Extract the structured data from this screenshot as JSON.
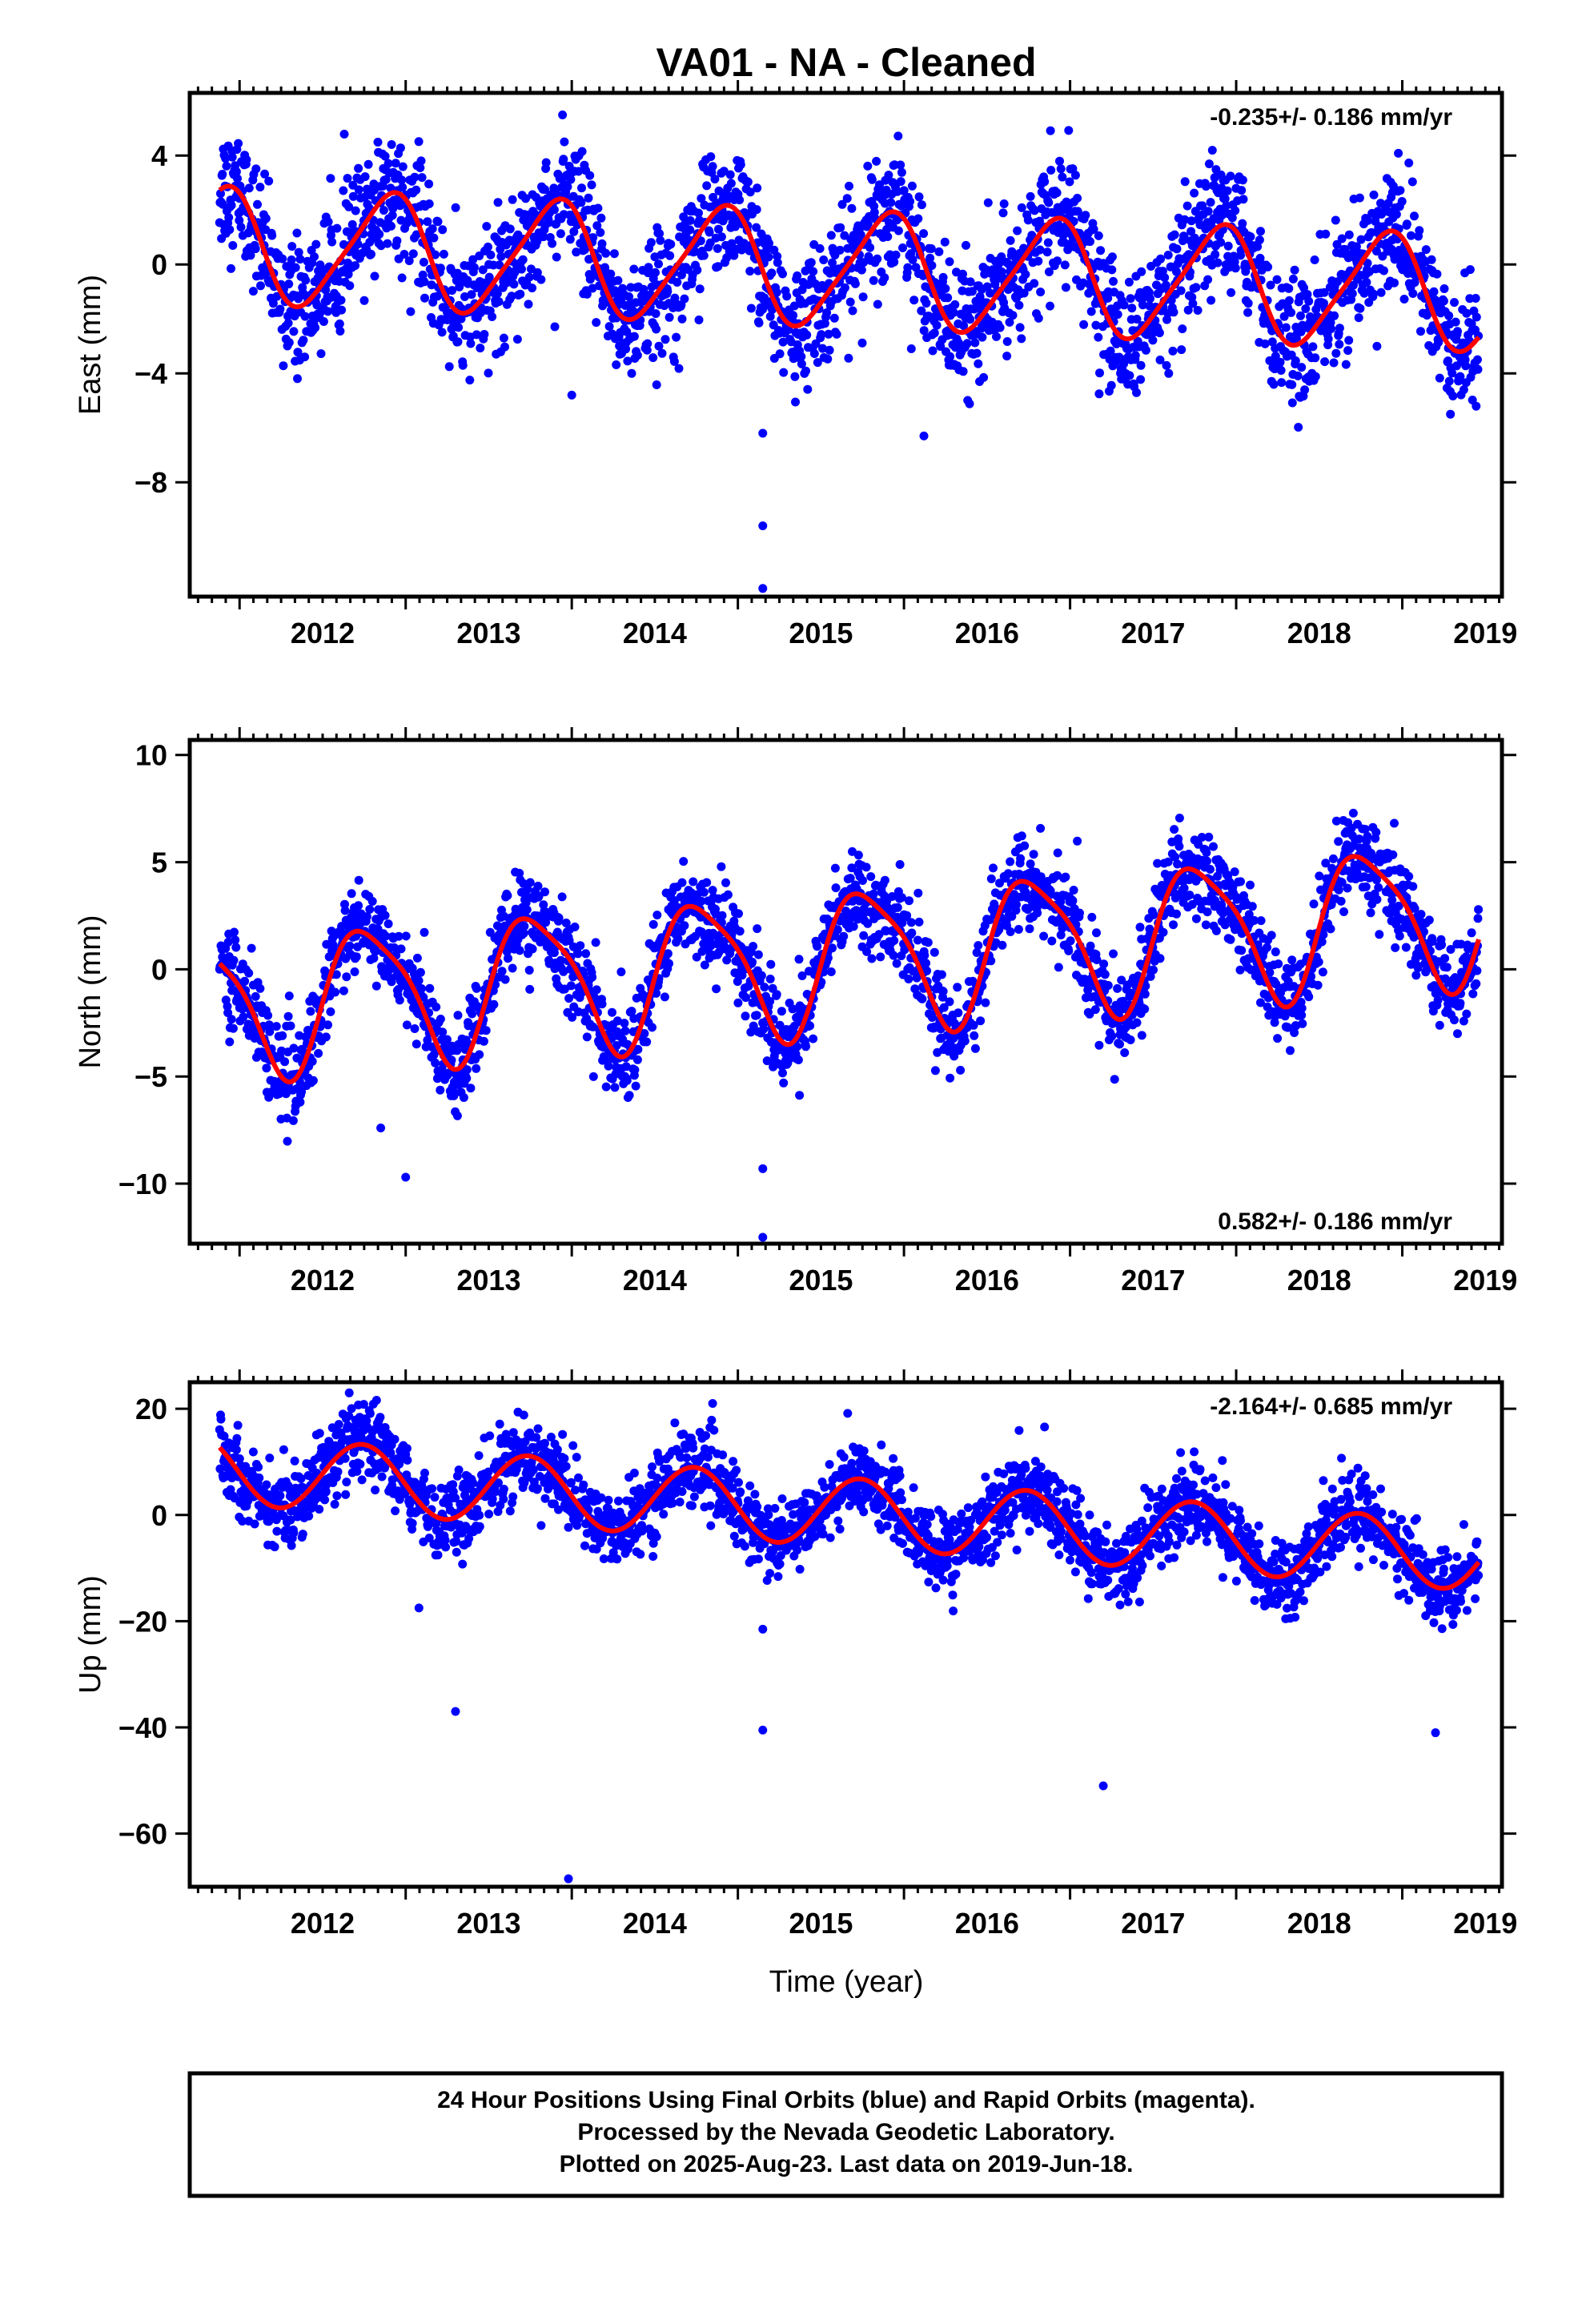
{
  "title": "VA01  - NA - Cleaned",
  "xlabel": "Time (year)",
  "footer": [
    "24 Hour Positions Using Final Orbits (blue) and Rapid Orbits (magenta).",
    "Processed by the Nevada Geodetic Laboratory.",
    "Plotted on 2025-Aug-23. Last data on 2019-Jun-18."
  ],
  "colors": {
    "points": "#0000ff",
    "model": "#ff0000",
    "frame": "#000000"
  },
  "chart_data": [
    {
      "type": "scatter",
      "ylabel": "East (mm)",
      "rate_text": "-0.235+/- 0.186 mm/yr",
      "rate_position": "top-right",
      "xlim": [
        2011.7,
        2019.6
      ],
      "ylim": [
        -12.2,
        6.3
      ],
      "xticks": [
        2012,
        2013,
        2014,
        2015,
        2016,
        2017,
        2018,
        2019
      ],
      "yticks": [
        4,
        0,
        -4,
        -8
      ],
      "ytick_labels": [
        "4",
        "0",
        "−4",
        "−8"
      ],
      "model": {
        "rate_mm_yr": -0.235,
        "t0": 2015.5,
        "offset": -0.15,
        "annual_cos": 1.6,
        "annual_sin": -1.3,
        "semiannual_cos": 0.35,
        "semiannual_sin": 0.05
      },
      "noise_sd": 1.15,
      "outliers": [
        [
          2015.15,
          -6.2
        ],
        [
          2015.15,
          -9.6
        ],
        [
          2015.15,
          -11.9
        ],
        [
          2016.12,
          -6.3
        ],
        [
          2014.0,
          -4.8
        ],
        [
          2019.29,
          -5.5
        ]
      ],
      "series": [
        {
          "name": "Final Orbits",
          "color": "#0000ff"
        },
        {
          "name": "Model",
          "color": "#ff0000"
        }
      ]
    },
    {
      "type": "scatter",
      "ylabel": "North (mm)",
      "rate_text": "0.582+/- 0.186 mm/yr",
      "rate_position": "bottom-right",
      "xlim": [
        2011.7,
        2019.6
      ],
      "ylim": [
        -12.8,
        10.7
      ],
      "xticks": [
        2012,
        2013,
        2014,
        2015,
        2016,
        2017,
        2018,
        2019
      ],
      "yticks": [
        10,
        5,
        0,
        -5,
        -10
      ],
      "ytick_labels": [
        "10",
        "5",
        "0",
        "−5",
        "−10"
      ],
      "model": {
        "rate_mm_yr": 0.582,
        "t0": 2015.5,
        "offset": 0.4,
        "annual_cos": 0.5,
        "annual_sin": -3.2,
        "semiannual_cos": 0.3,
        "semiannual_sin": 0.6
      },
      "noise_sd": 1.05,
      "outliers": [
        [
          2013.0,
          -9.7
        ],
        [
          2015.15,
          -9.3
        ],
        [
          2015.15,
          -12.5
        ],
        [
          2012.85,
          -7.4
        ]
      ],
      "series": [
        {
          "name": "Final Orbits",
          "color": "#0000ff"
        },
        {
          "name": "Model",
          "color": "#ff0000"
        }
      ]
    },
    {
      "type": "scatter",
      "ylabel": "Up (mm)",
      "rate_text": "-2.164+/- 0.685 mm/yr",
      "rate_position": "top-right",
      "xlim": [
        2011.7,
        2019.6
      ],
      "ylim": [
        -70,
        25
      ],
      "xticks": [
        2012,
        2013,
        2014,
        2015,
        2016,
        2017,
        2018,
        2019
      ],
      "yticks": [
        20,
        0,
        -20,
        -40,
        -60
      ],
      "ytick_labels": [
        "20",
        "0",
        "−20",
        "−40",
        "−60"
      ],
      "model": {
        "rate_mm_yr": -2.164,
        "t0": 2015.5,
        "offset": 0.8,
        "annual_cos": -0.5,
        "annual_sin": -6.5,
        "semiannual_cos": 0.0,
        "semiannual_sin": 0.0
      },
      "noise_sd": 3.6,
      "outliers": [
        [
          2013.08,
          -17.5
        ],
        [
          2013.3,
          -37
        ],
        [
          2013.98,
          -68.5
        ],
        [
          2015.15,
          -21.5
        ],
        [
          2015.15,
          -40.5
        ],
        [
          2017.2,
          -51
        ],
        [
          2019.2,
          -41
        ]
      ],
      "series": [
        {
          "name": "Final Orbits",
          "color": "#0000ff"
        },
        {
          "name": "Model",
          "color": "#ff0000"
        }
      ]
    }
  ]
}
